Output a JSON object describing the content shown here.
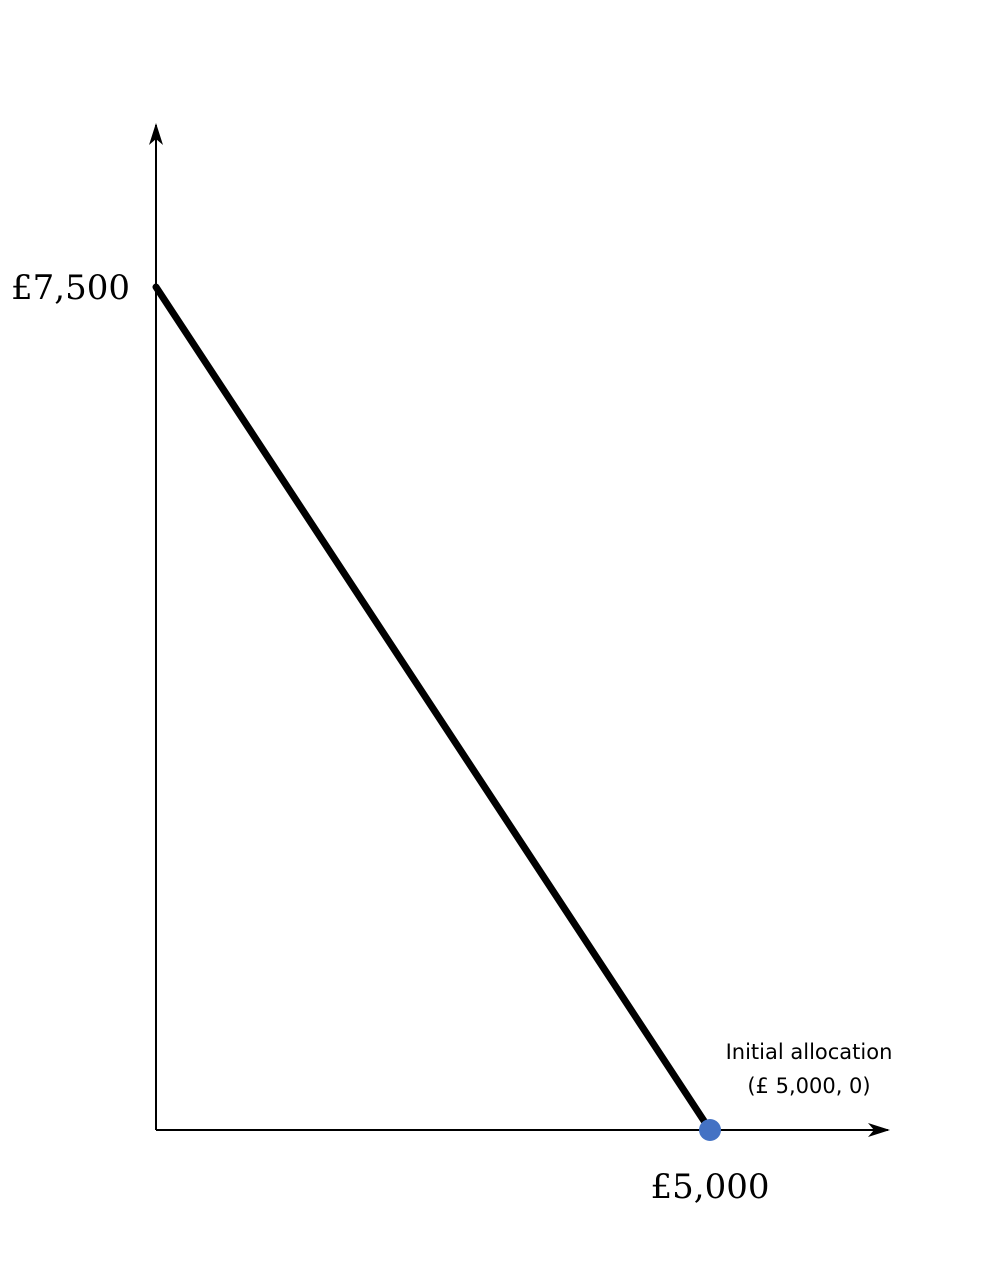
{
  "chart_data": {
    "type": "line",
    "title": "",
    "xlabel": "",
    "ylabel": "",
    "xlim": [
      0,
      6000
    ],
    "ylim": [
      0,
      8500
    ],
    "grid": false,
    "x_ticks": [
      {
        "value": 5000,
        "label": "£5,000"
      }
    ],
    "y_ticks": [
      {
        "value": 7500,
        "label": "£7,500"
      }
    ],
    "series": [
      {
        "x": [
          0,
          5000
        ],
        "y": [
          7500,
          0
        ],
        "color": "#000000"
      }
    ],
    "points": [
      {
        "x": 5000,
        "y": 0,
        "color": "#4472c4"
      }
    ],
    "annotations": [
      {
        "x": 5000,
        "y": 0,
        "lines": [
          "Initial allocation",
          "(£ 5,000, 0)"
        ]
      }
    ]
  }
}
